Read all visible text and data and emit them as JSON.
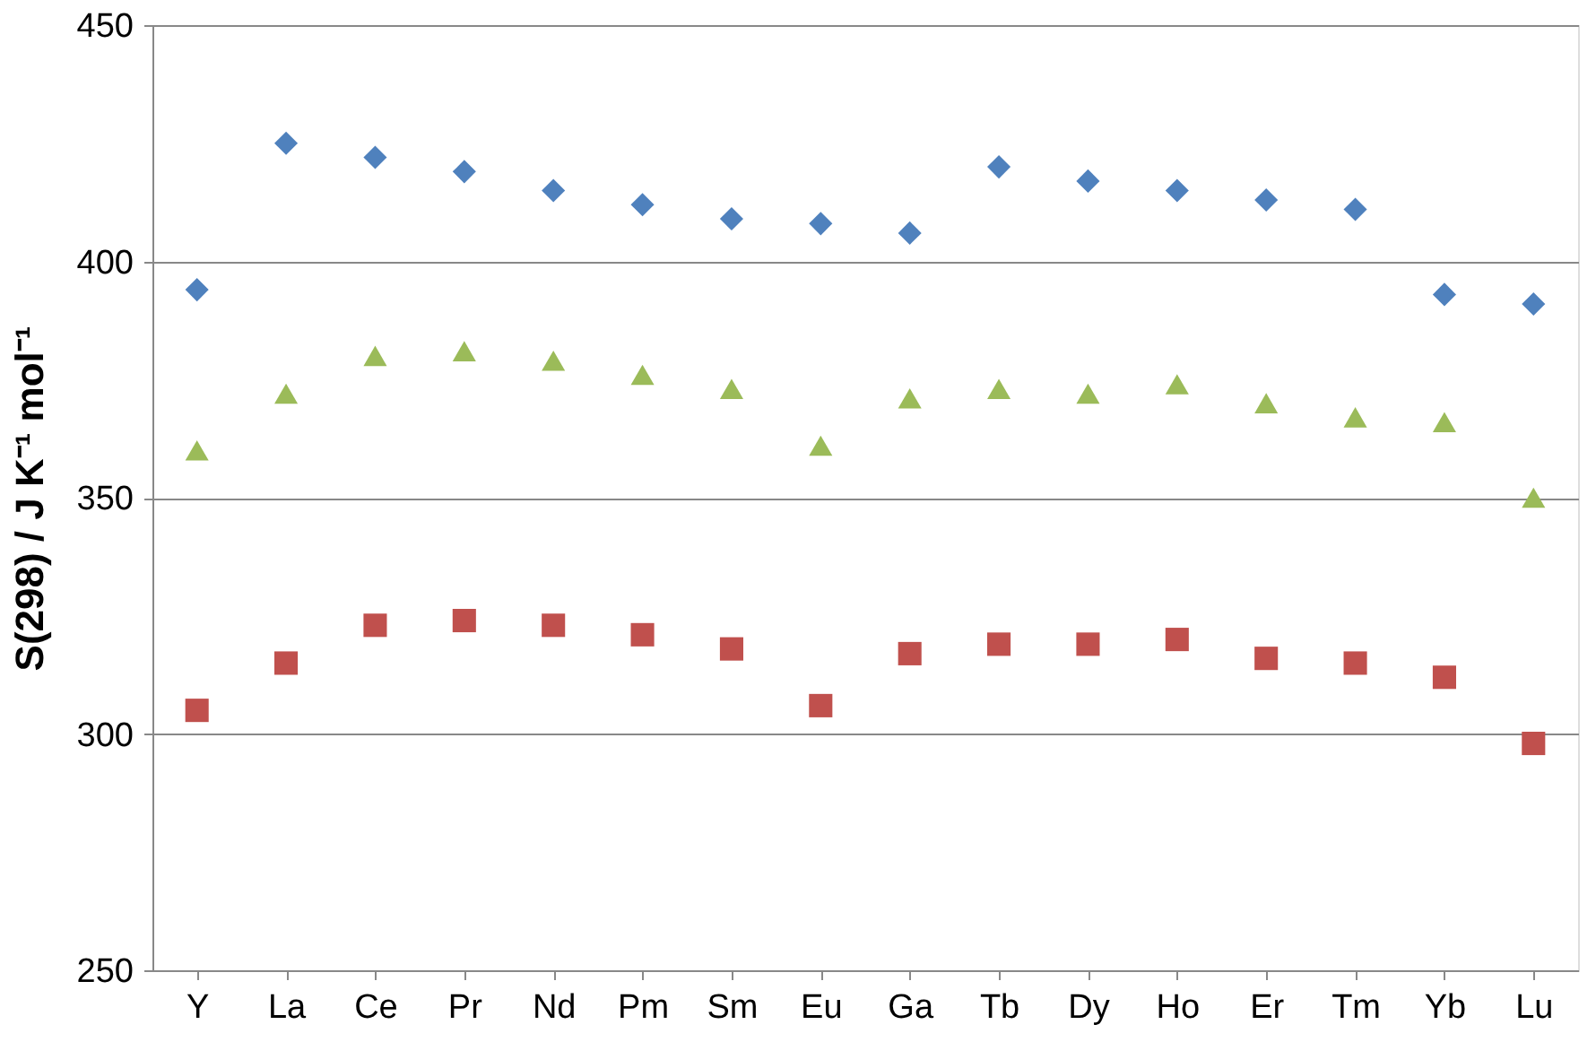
{
  "chart_data": {
    "type": "scatter",
    "ylabel": "S(298) / J K⁻¹ mol⁻¹",
    "categories": [
      "Y",
      "La",
      "Ce",
      "Pr",
      "Nd",
      "Pm",
      "Sm",
      "Eu",
      "Ga",
      "Tb",
      "Dy",
      "Ho",
      "Er",
      "Tm",
      "Yb",
      "Lu"
    ],
    "series": [
      {
        "color": "#4f81bd",
        "marker": "diamond",
        "values": [
          394,
          425,
          422,
          419,
          415,
          412,
          409,
          408,
          406,
          420,
          417,
          415,
          413,
          411,
          393,
          391
        ]
      },
      {
        "color": "#9bbb59",
        "marker": "triangle",
        "values": [
          360,
          372,
          380,
          381,
          379,
          376,
          373,
          361,
          371,
          373,
          372,
          374,
          370,
          367,
          366,
          350
        ]
      },
      {
        "color": "#c0504d",
        "marker": "square",
        "values": [
          305,
          315,
          323,
          324,
          323,
          321,
          318,
          306,
          317,
          319,
          319,
          320,
          316,
          315,
          312,
          298
        ]
      }
    ],
    "ylim": [
      250,
      450
    ],
    "yticks": [
      250,
      300,
      350,
      400,
      450
    ],
    "grid": "y"
  }
}
